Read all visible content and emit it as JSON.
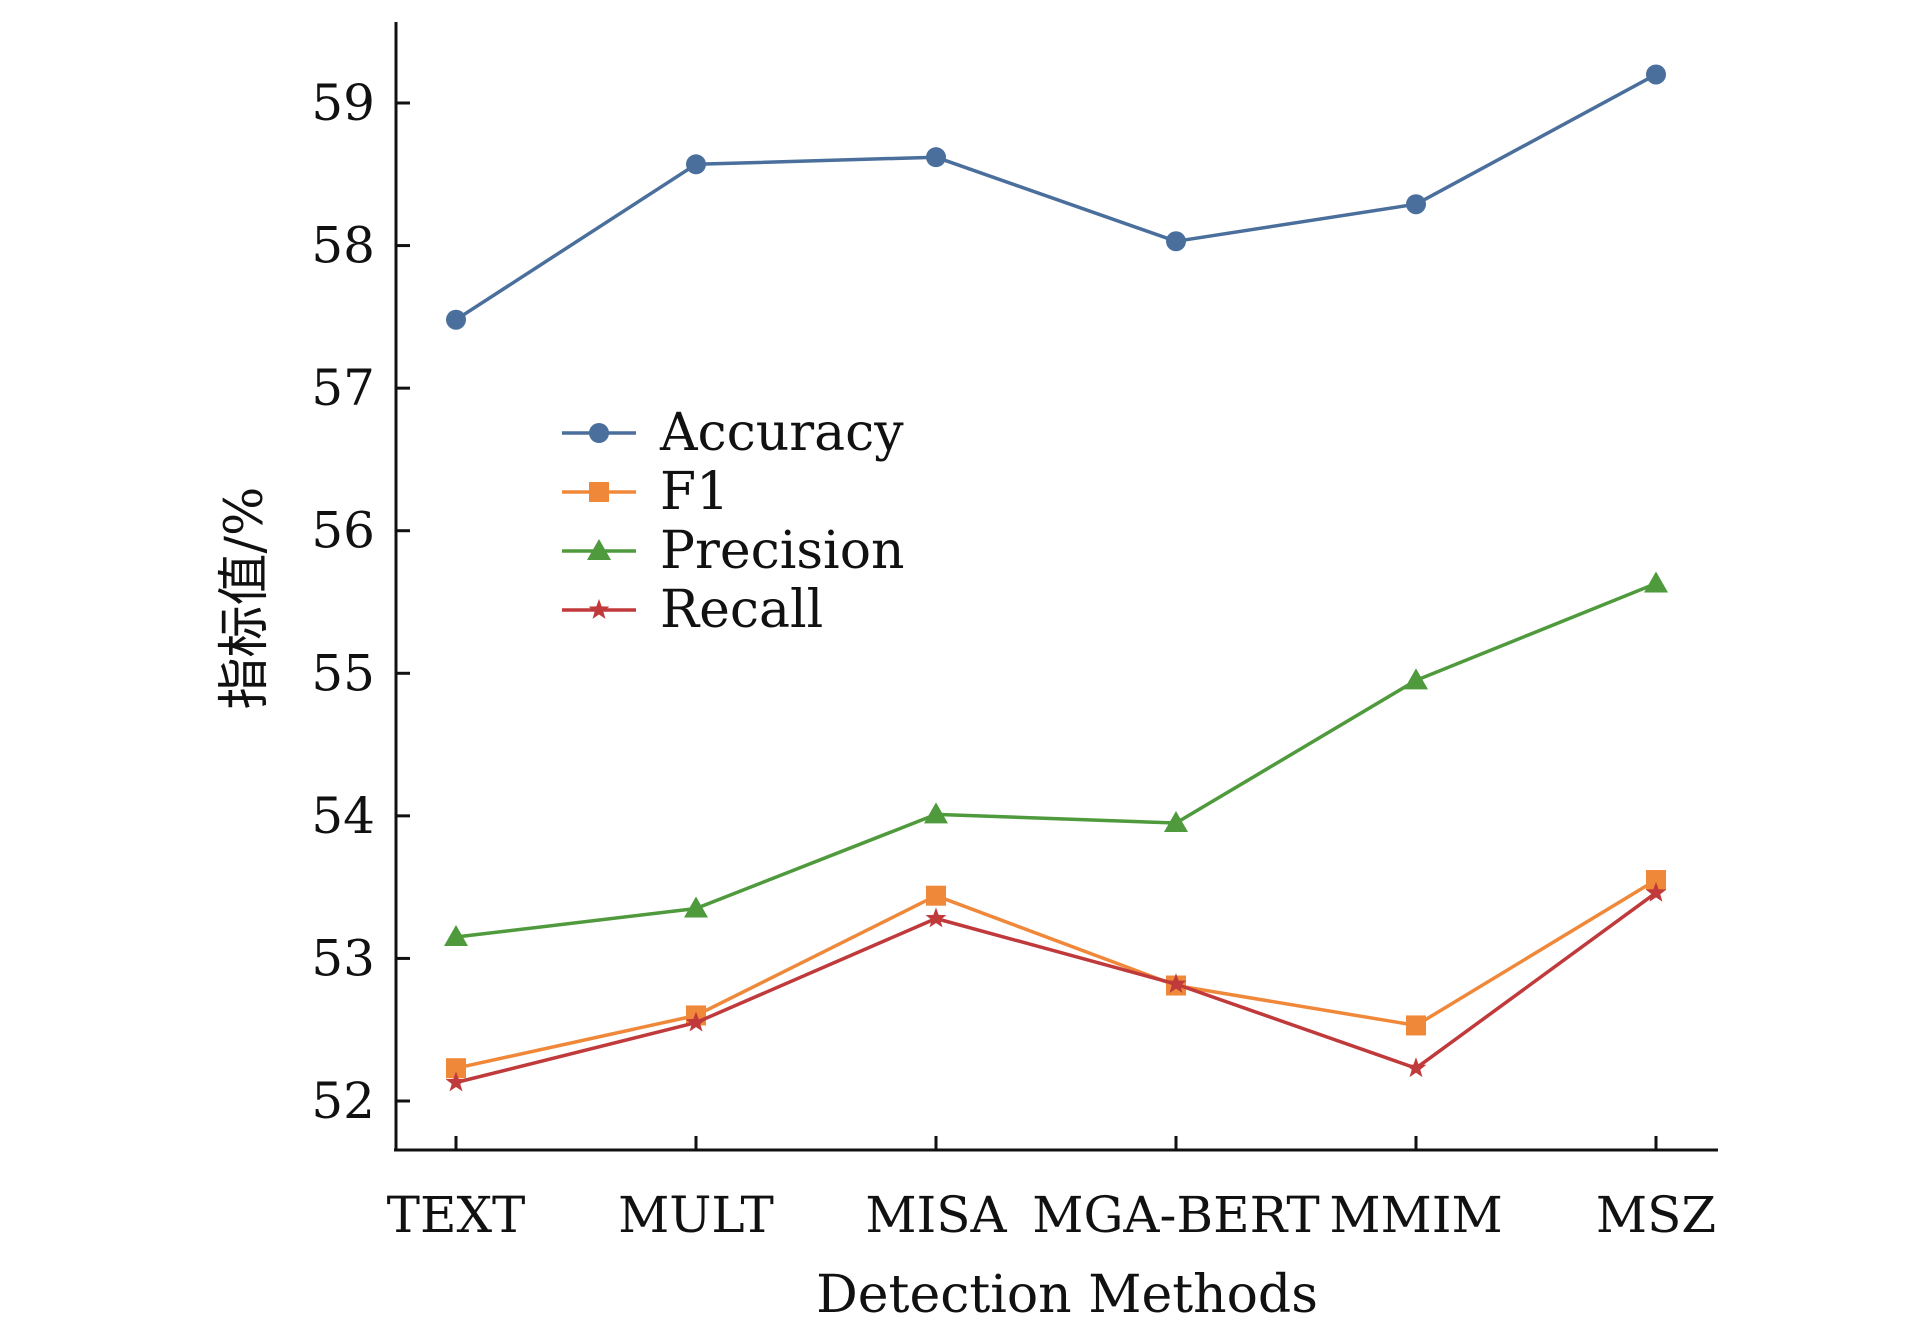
{
  "chart_data": {
    "type": "line",
    "title": "",
    "xlabel": "Detection Methods",
    "ylabel": "指标值/%",
    "categories": [
      "TEXT",
      "MULT",
      "MISA",
      "MGA-BERT",
      "MMIM",
      "MSZ"
    ],
    "ylim": [
      51.6,
      59.6
    ],
    "yticks": [
      52,
      53,
      54,
      55,
      56,
      57,
      58,
      59
    ],
    "grid": false,
    "legend_position": "center-left",
    "series": [
      {
        "name": "Accuracy",
        "color": "#4a6f9c",
        "marker": "circle",
        "values": [
          57.48,
          58.57,
          58.62,
          58.03,
          58.29,
          59.2
        ]
      },
      {
        "name": "F1",
        "color": "#f0883a",
        "marker": "square",
        "values": [
          52.23,
          52.6,
          53.44,
          52.81,
          52.53,
          53.55
        ]
      },
      {
        "name": "Precision",
        "color": "#4e9a3c",
        "marker": "triangle",
        "values": [
          53.15,
          53.35,
          54.01,
          53.95,
          54.95,
          55.63
        ]
      },
      {
        "name": "Recall",
        "color": "#c0393b",
        "marker": "star",
        "values": [
          52.13,
          52.55,
          53.28,
          52.82,
          52.23,
          53.46
        ]
      }
    ]
  }
}
